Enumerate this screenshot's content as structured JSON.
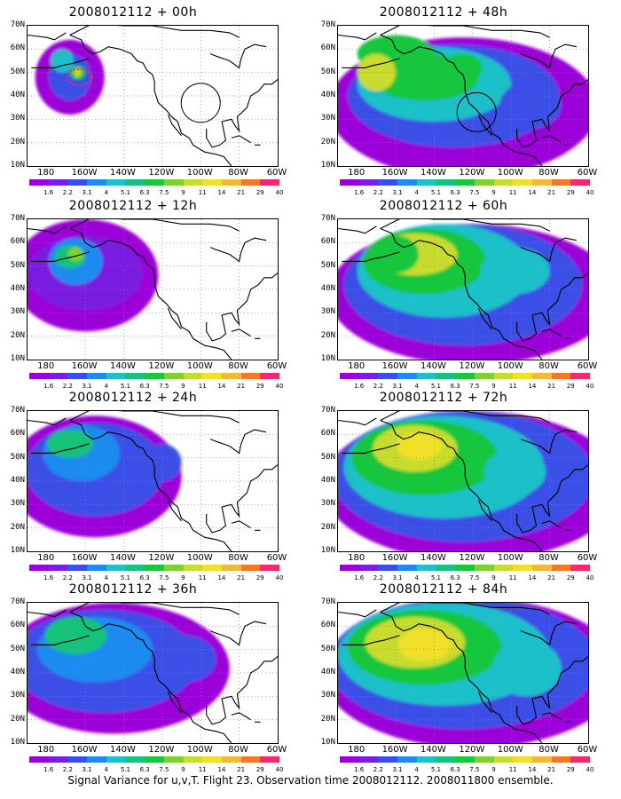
{
  "caption": "Signal Variance for u,v,T. Flight 23. Observation time 2008012112. 2008011800 ensemble.",
  "x_ticks": [
    "180",
    "160W",
    "140W",
    "120W",
    "100W",
    "80W",
    "60W"
  ],
  "y_ticks": [
    "70N",
    "60N",
    "50N",
    "40N",
    "30N",
    "20N",
    "10N"
  ],
  "colorbar_labels": [
    "1.6",
    "2.2",
    "3.1",
    "4",
    "5.1",
    "6.3",
    "7.5",
    "9",
    "11",
    "14",
    "21",
    "29",
    "40"
  ],
  "colorbar_colors": [
    "#9b00d8",
    "#7a1fe0",
    "#3a4fe6",
    "#1f8bf0",
    "#1fc0c8",
    "#19c27a",
    "#19c63c",
    "#7fd12e",
    "#c7dc2e",
    "#f0e02a",
    "#f0b93a",
    "#f07a2a",
    "#f02a6e"
  ],
  "panels": [
    {
      "title": "2008012112 + 00h",
      "lead_hours": 0
    },
    {
      "title": "2008012112 + 48h",
      "lead_hours": 48
    },
    {
      "title": "2008012112 + 12h",
      "lead_hours": 12
    },
    {
      "title": "2008012112 + 60h",
      "lead_hours": 60
    },
    {
      "title": "2008012112 + 24h",
      "lead_hours": 24
    },
    {
      "title": "2008012112 + 72h",
      "lead_hours": 72
    },
    {
      "title": "2008012112 + 36h",
      "lead_hours": 36
    },
    {
      "title": "2008012112 + 84h",
      "lead_hours": 84
    }
  ]
}
